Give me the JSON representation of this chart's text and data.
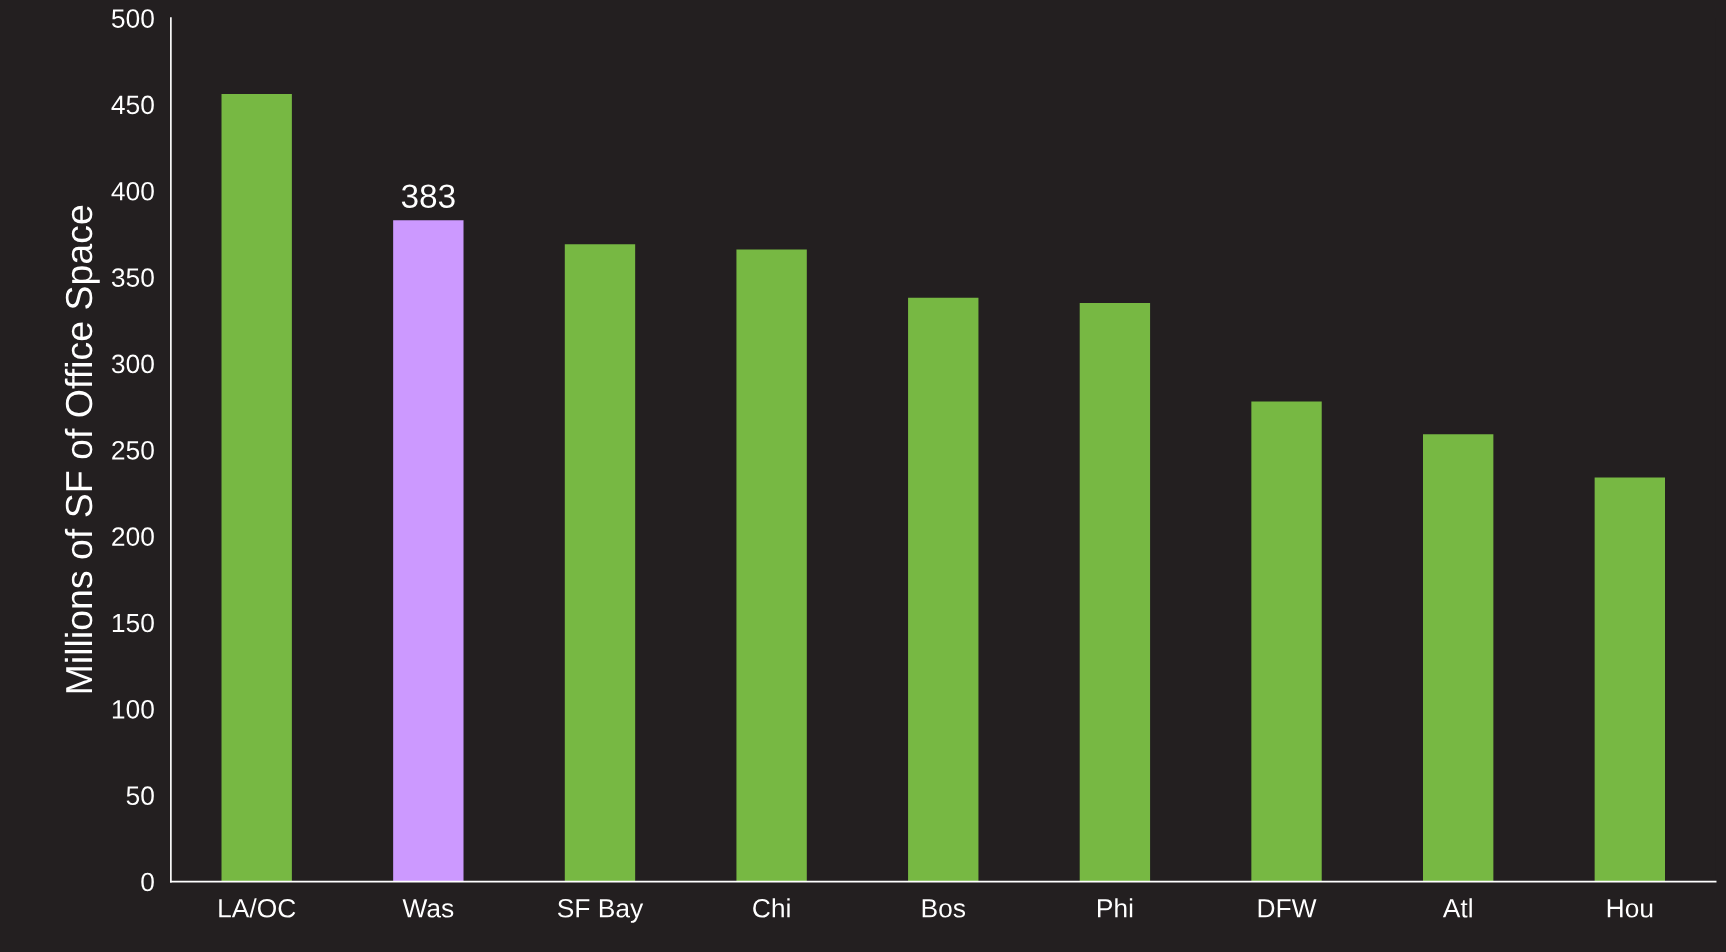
{
  "chart_data": {
    "type": "bar",
    "ylabel": "Millions of SF of Office Space",
    "categories": [
      "LA/OC",
      "Was",
      "SF Bay",
      "Chi",
      "Bos",
      "Phi",
      "DFW",
      "Atl",
      "Hou"
    ],
    "values": [
      456,
      383,
      369,
      366,
      338,
      335,
      278,
      259,
      234
    ],
    "colors": [
      "#77b843",
      "#cc99ff",
      "#77b843",
      "#77b843",
      "#77b843",
      "#77b843",
      "#77b843",
      "#77b843",
      "#77b843"
    ],
    "value_labels": [
      null,
      "383",
      null,
      null,
      null,
      null,
      null,
      null,
      null
    ],
    "ylim": [
      0,
      500
    ],
    "yticks": [
      0,
      50,
      100,
      150,
      200,
      250,
      300,
      350,
      400,
      450,
      500
    ],
    "grid": false
  }
}
